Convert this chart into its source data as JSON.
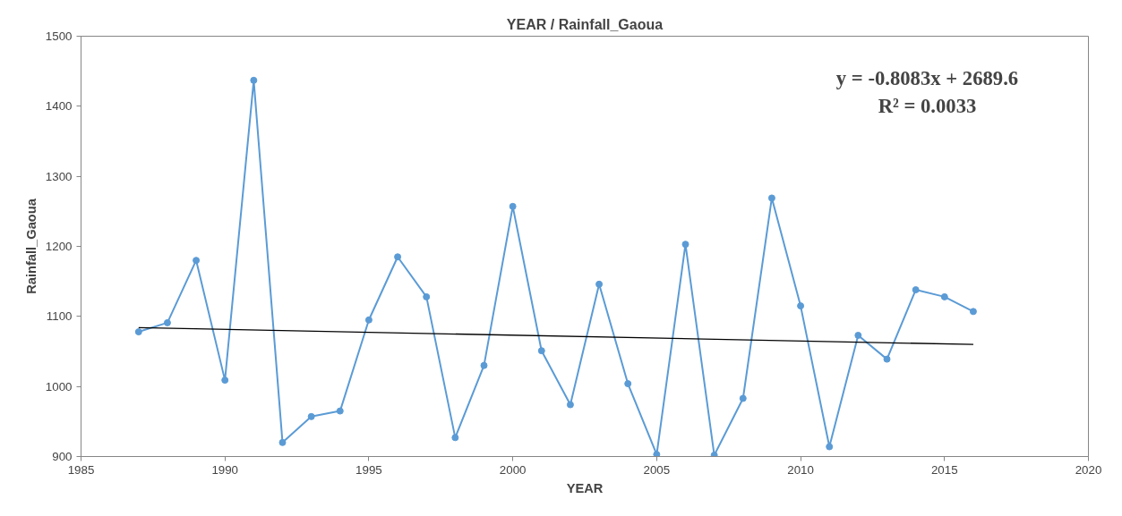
{
  "chart_data": {
    "type": "line",
    "title": "YEAR / Rainfall_Gaoua",
    "xlabel": "YEAR",
    "ylabel": "Rainfall_Gaoua",
    "x": [
      1987,
      1988,
      1989,
      1990,
      1991,
      1992,
      1993,
      1994,
      1995,
      1996,
      1997,
      1998,
      1999,
      2000,
      2001,
      2002,
      2003,
      2004,
      2005,
      2006,
      2007,
      2008,
      2009,
      2010,
      2011,
      2012,
      2013,
      2014,
      2015,
      2016
    ],
    "series": [
      {
        "color": "#5b9bd5",
        "marker": "circle",
        "values": [
          1078,
          1091,
          1180,
          1009,
          1437,
          920,
          957,
          965,
          1095,
          1185,
          1128,
          927,
          1030,
          1257,
          1051,
          974,
          1146,
          1004,
          903,
          1203,
          902,
          983,
          1269,
          1115,
          914,
          1073,
          1039,
          1138,
          1128,
          1107
        ]
      },
      {
        "type": "line",
        "color": "#000000",
        "marker": "none",
        "x": [
          1987,
          2016
        ],
        "values": [
          1084,
          1060
        ]
      }
    ],
    "xlim": [
      1985,
      2020
    ],
    "xticks": [
      1985,
      1990,
      1995,
      2000,
      2005,
      2010,
      2015,
      2020
    ],
    "ylim": [
      900,
      1500
    ],
    "yticks": [
      900,
      1000,
      1100,
      1200,
      1300,
      1400,
      1500
    ],
    "grid": false,
    "annotations": [
      "y = -0.8083x + 2689.6",
      "R² = 0.0033"
    ]
  }
}
